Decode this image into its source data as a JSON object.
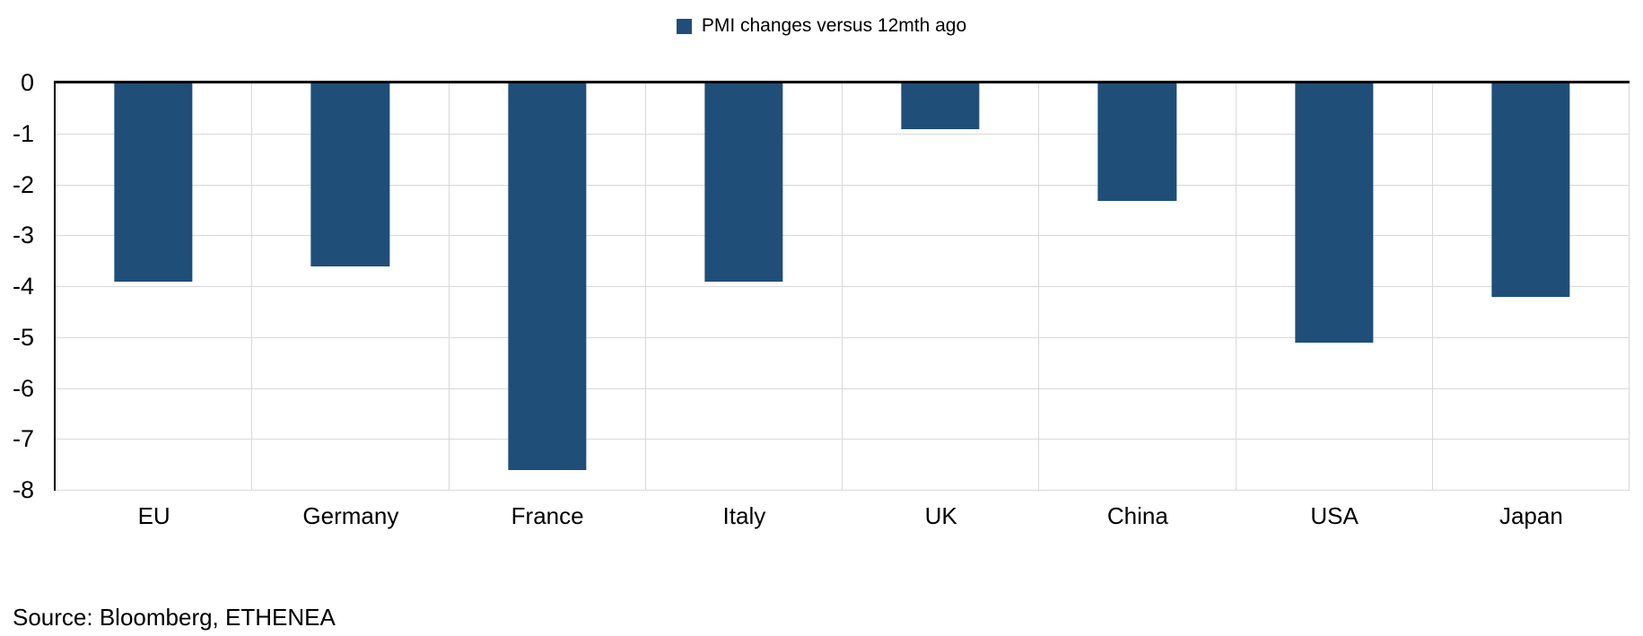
{
  "chart_data": {
    "type": "bar",
    "legend": "PMI changes versus 12mth ago",
    "legend_position": "top-center",
    "categories": [
      "EU",
      "Germany",
      "France",
      "Italy",
      "UK",
      "China",
      "USA",
      "Japan"
    ],
    "series": [
      {
        "name": "PMI changes versus 12mth ago",
        "values": [
          -3.9,
          -3.6,
          -7.6,
          -3.9,
          -0.9,
          -2.3,
          -5.1,
          -4.2
        ]
      }
    ],
    "xlabel": "",
    "ylabel": "",
    "ylim": [
      -8,
      0
    ],
    "yticks": [
      0,
      -1,
      -2,
      -3,
      -4,
      -5,
      -6,
      -7,
      -8
    ],
    "grid": true,
    "bar_color": "#1F4E79",
    "gridline_color": "#D9D9D9",
    "axis_color": "#000000"
  },
  "source": "Source: Bloomberg, ETHENEA"
}
